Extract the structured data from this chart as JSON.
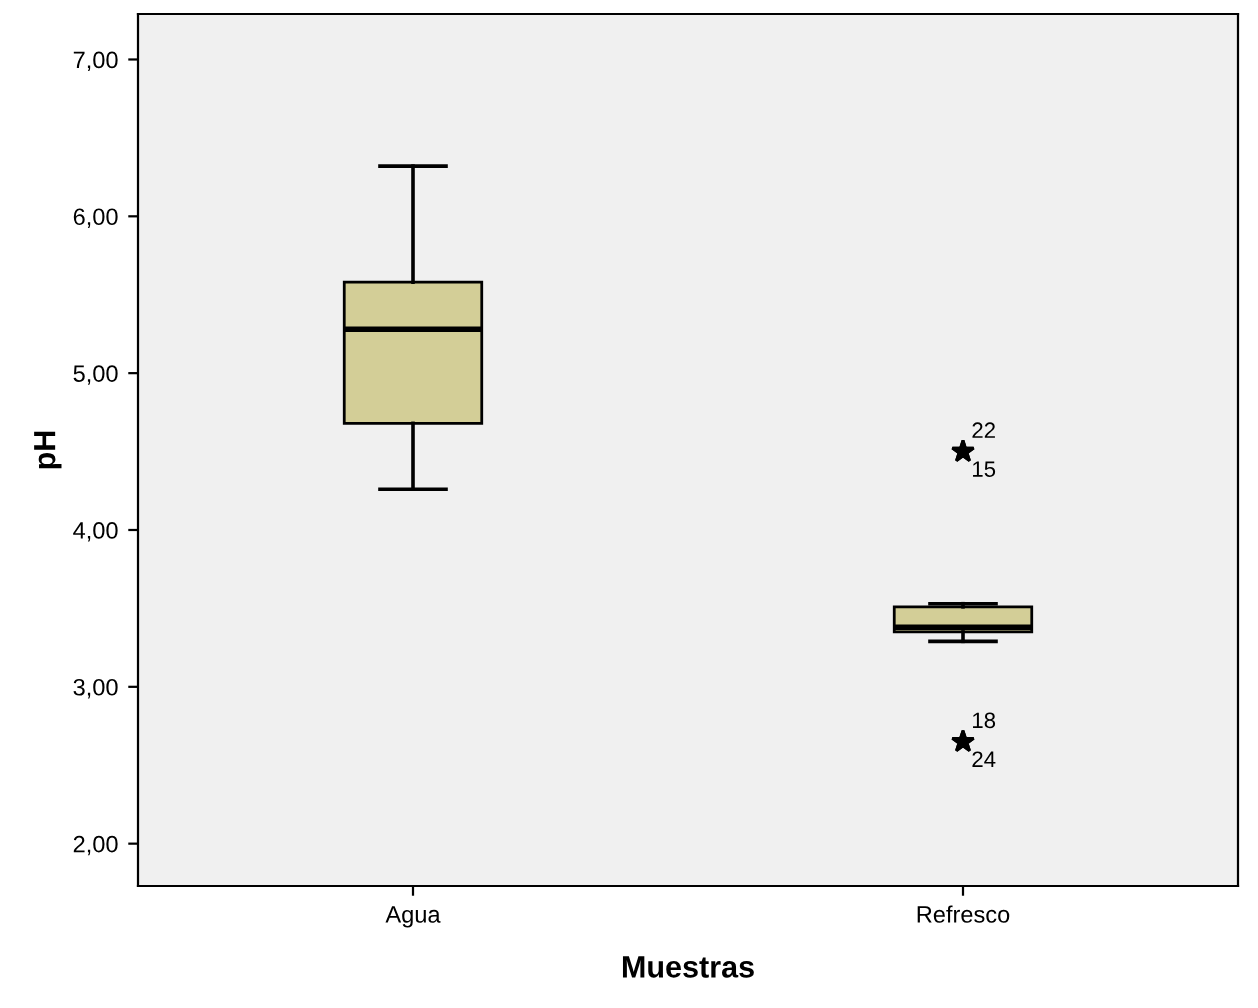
{
  "chart_data": {
    "type": "box",
    "xlabel": "Muestras",
    "ylabel": "pH",
    "categories": [
      "Agua",
      "Refresco"
    ],
    "color": "#d3ce97",
    "boxes": [
      {
        "low": 4.26,
        "q1": 4.68,
        "median": 5.28,
        "q3": 5.58,
        "high": 6.32
      },
      {
        "low": 3.29,
        "q1": 3.35,
        "median": 3.38,
        "q3": 3.51,
        "high": 3.53,
        "outliers": [
          4.5,
          4.5,
          2.65,
          2.65
        ]
      }
    ],
    "marker": "star",
    "annotations": [
      "22",
      "15",
      "18",
      "24"
    ],
    "ylim": [
      1.73,
      7.29
    ],
    "yticks": [
      {
        "value": 2,
        "label": "2,00"
      },
      {
        "value": 3,
        "label": "3,00"
      },
      {
        "value": 4,
        "label": "4,00"
      },
      {
        "value": 5,
        "label": "5,00"
      },
      {
        "value": 6,
        "label": "6,00"
      },
      {
        "value": 7,
        "label": "7,00"
      }
    ],
    "grid": false,
    "legend": false
  }
}
